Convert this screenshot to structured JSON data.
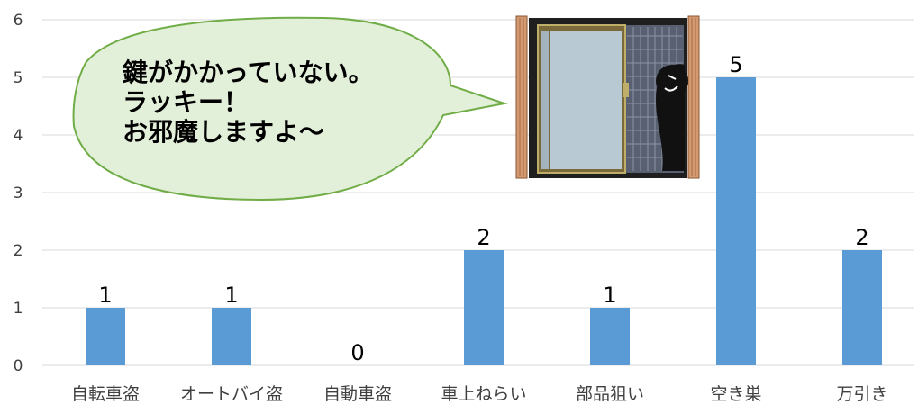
{
  "chart_data": {
    "type": "bar",
    "categories": [
      "自転車盗",
      "オートバイ盗",
      "自動車盗",
      "車上ねらい",
      "部品狙い",
      "空き巣",
      "万引き"
    ],
    "values": [
      1,
      1,
      0,
      2,
      1,
      5,
      2
    ],
    "ylim": [
      0,
      6
    ],
    "yticks": [
      0,
      1,
      2,
      3,
      4,
      5,
      6
    ],
    "grid": true,
    "legend": "none",
    "bar_color": "#5b9bd5",
    "data_labels": true
  },
  "callout": {
    "lines": [
      "鍵がかかっていない。",
      "ラッキー！",
      "お邪魔しますよ〜"
    ],
    "fill": "#e2efd9",
    "stroke": "#70ad47"
  },
  "illustration": {
    "icon": "burglar-at-window-icon"
  }
}
